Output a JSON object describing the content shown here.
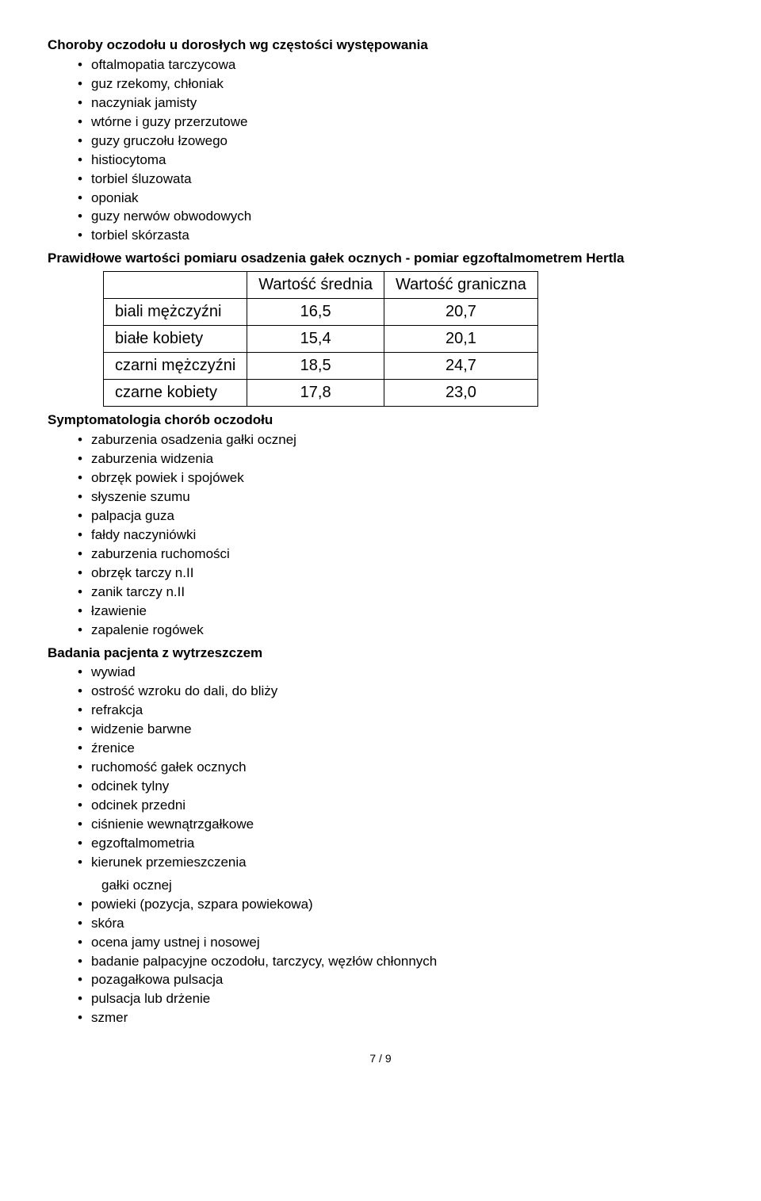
{
  "section1": {
    "title": "Choroby oczodołu u dorosłych wg częstości występowania",
    "items": [
      "oftalmopatia tarczycowa",
      "guz rzekomy, chłoniak",
      "naczyniak jamisty",
      "wtórne i guzy przerzutowe",
      "guzy gruczołu łzowego",
      "histiocytoma",
      "torbiel śluzowata",
      "oponiak",
      "guzy nerwów obwodowych",
      "torbiel skórzasta"
    ]
  },
  "tableSection": {
    "title": "Prawidłowe wartości pomiaru osadzenia gałek ocznych - pomiar egzoftalmometrem Hertla",
    "columns": [
      "",
      "Wartość średnia",
      "Wartość graniczna"
    ],
    "rows": [
      [
        "biali mężczyźni",
        "16,5",
        "20,7"
      ],
      [
        "białe kobiety",
        "15,4",
        "20,1"
      ],
      [
        "czarni mężczyźni",
        "18,5",
        "24,7"
      ],
      [
        "czarne kobiety",
        "17,8",
        "23,0"
      ]
    ],
    "table_style": {
      "type": "table",
      "border_color": "#000000",
      "border_width": 1,
      "background_color": "#ffffff",
      "header_bg": "#ffffff",
      "font_size": 20,
      "col_align": [
        "left",
        "center",
        "center"
      ]
    }
  },
  "section2": {
    "title": "Symptomatologia chorób oczodołu",
    "items": [
      "zaburzenia osadzenia gałki ocznej",
      "zaburzenia widzenia",
      "obrzęk powiek i spojówek",
      "słyszenie szumu",
      "palpacja guza",
      "fałdy naczyniówki",
      "zaburzenia ruchomości",
      "obrzęk tarczy n.II",
      "zanik tarczy n.II",
      "łzawienie",
      "zapalenie rogówek"
    ]
  },
  "section3": {
    "title": "Badania pacjenta z wytrzeszczem",
    "items": [
      "wywiad",
      "ostrość wzroku do dali, do bliży",
      "refrakcja",
      "widzenie barwne",
      "źrenice",
      "ruchomość gałek ocznych",
      "odcinek tylny",
      "odcinek przedni",
      "ciśnienie wewnątrzgałkowe",
      "egzoftalmometria",
      "kierunek przemieszczenia"
    ],
    "sub_after_10": "gałki ocznej",
    "items_tail": [
      "powieki (pozycja, szpara powiekowa)",
      "skóra",
      "ocena jamy ustnej i nosowej",
      "badanie palpacyjne oczodołu, tarczycy, węzłów chłonnych",
      "pozagałkowa pulsacja",
      "pulsacja lub drżenie",
      "szmer"
    ]
  },
  "footer": "7 / 9",
  "doc_style": {
    "background_color": "#ffffff",
    "text_color": "#000000",
    "font_family": "Arial",
    "heading_weight": "bold",
    "body_font_size": 17
  }
}
